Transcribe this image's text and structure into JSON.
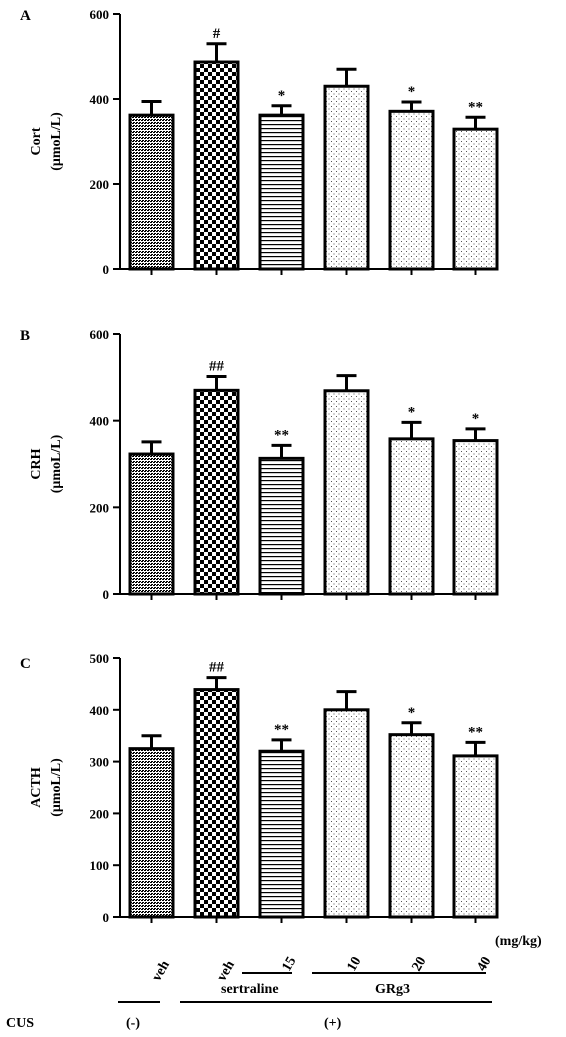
{
  "colors": {
    "ink": "#000000",
    "background": "#ffffff"
  },
  "chart_data": [
    {
      "type": "bar",
      "panel": "A",
      "ylabel_line1": "Cort",
      "ylabel_line2": "(μmoL/L)",
      "ylim": [
        0,
        600
      ],
      "yticks": [
        "0",
        "200",
        "400",
        "600"
      ],
      "bars": [
        {
          "value": 362,
          "error": 32,
          "pattern": "dense",
          "sig": ""
        },
        {
          "value": 487,
          "error": 43,
          "pattern": "checker",
          "sig": "#"
        },
        {
          "value": 362,
          "error": 22,
          "pattern": "hlines",
          "sig": "*"
        },
        {
          "value": 430,
          "error": 40,
          "pattern": "dots",
          "sig": ""
        },
        {
          "value": 371,
          "error": 22,
          "pattern": "dots",
          "sig": "*"
        },
        {
          "value": 329,
          "error": 28,
          "pattern": "dots",
          "sig": "**"
        }
      ]
    },
    {
      "type": "bar",
      "panel": "B",
      "ylabel_line1": "CRH",
      "ylabel_line2": "(μmoL/L)",
      "ylim": [
        0,
        600
      ],
      "yticks": [
        "0",
        "200",
        "400",
        "600"
      ],
      "bars": [
        {
          "value": 323,
          "error": 28,
          "pattern": "dense",
          "sig": ""
        },
        {
          "value": 470,
          "error": 32,
          "pattern": "checker",
          "sig": "##"
        },
        {
          "value": 313,
          "error": 30,
          "pattern": "hlines",
          "sig": "**"
        },
        {
          "value": 469,
          "error": 35,
          "pattern": "dots",
          "sig": ""
        },
        {
          "value": 358,
          "error": 38,
          "pattern": "dots",
          "sig": "*"
        },
        {
          "value": 354,
          "error": 27,
          "pattern": "dots",
          "sig": "*"
        }
      ]
    },
    {
      "type": "bar",
      "panel": "C",
      "ylabel_line1": "ACTH",
      "ylabel_line2": "(μmoL/L)",
      "ylim": [
        0,
        500
      ],
      "yticks": [
        "0",
        "100",
        "200",
        "300",
        "400",
        "500"
      ],
      "bars": [
        {
          "value": 325,
          "error": 25,
          "pattern": "dense",
          "sig": ""
        },
        {
          "value": 439,
          "error": 23,
          "pattern": "checker",
          "sig": "##"
        },
        {
          "value": 320,
          "error": 22,
          "pattern": "hlines",
          "sig": "**"
        },
        {
          "value": 400,
          "error": 35,
          "pattern": "dots",
          "sig": ""
        },
        {
          "value": 352,
          "error": 23,
          "pattern": "dots",
          "sig": "*"
        },
        {
          "value": 311,
          "error": 26,
          "pattern": "dots",
          "sig": "**"
        }
      ]
    }
  ],
  "x_axis": {
    "categories": [
      "veh",
      "veh",
      "15",
      "10",
      "20",
      "40"
    ],
    "unit": "(mg/kg)",
    "groups": [
      {
        "label": "sertraline"
      },
      {
        "label": "GRg3"
      }
    ],
    "cus": {
      "label": "CUS",
      "minus": "(-)",
      "plus": "(+)"
    }
  }
}
